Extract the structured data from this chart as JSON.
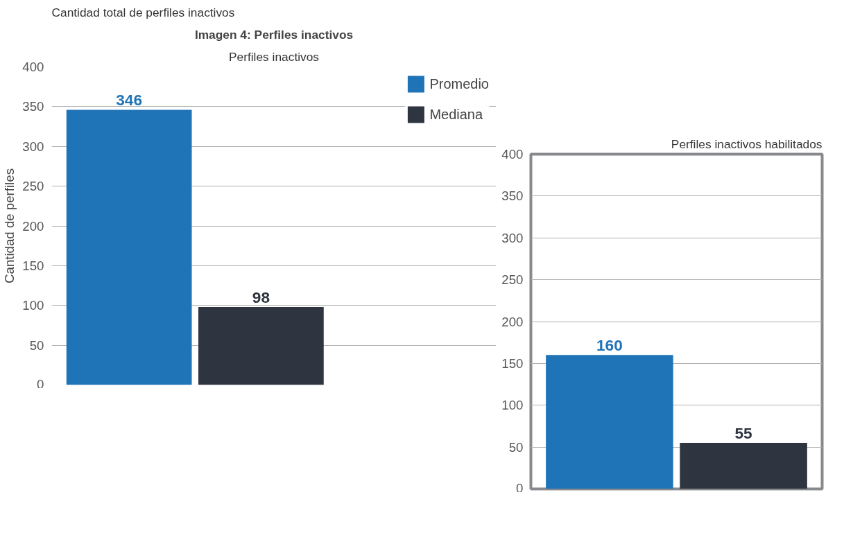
{
  "chart_data": [
    {
      "type": "bar",
      "title": "Imagen 4: Perfiles inactivos",
      "subtitle": "Perfiles inactivos",
      "annotations": [
        "Cantidad total de perfiles inactivos"
      ],
      "ylabel": "Cantidad de perfiles",
      "categories": [
        null
      ],
      "series": [
        {
          "name": "Promedio",
          "color": "#1f73b7",
          "values": [
            346
          ]
        },
        {
          "name": "Mediana",
          "color": "#2f3540",
          "values": [
            98
          ]
        }
      ],
      "ylim": [
        0,
        400
      ],
      "yticks": [
        0,
        50,
        100,
        150,
        200,
        250,
        300,
        350,
        400
      ],
      "grid": "y",
      "legend": "top right",
      "data_labels": true,
      "tick_labels": "y"
    },
    {
      "type": "bar",
      "title": "Perfiles inactivos habilitados",
      "categories": [
        null
      ],
      "series": [
        {
          "color": "#1f73b7",
          "values": [
            160
          ]
        },
        {
          "color": "#2f3540",
          "values": [
            55
          ]
        }
      ],
      "ylim": [
        0,
        400
      ],
      "yticks": [
        0,
        50,
        100,
        150,
        200,
        250,
        300,
        350,
        400
      ],
      "grid": "y",
      "data_labels": true,
      "tick_labels": "y"
    }
  ]
}
